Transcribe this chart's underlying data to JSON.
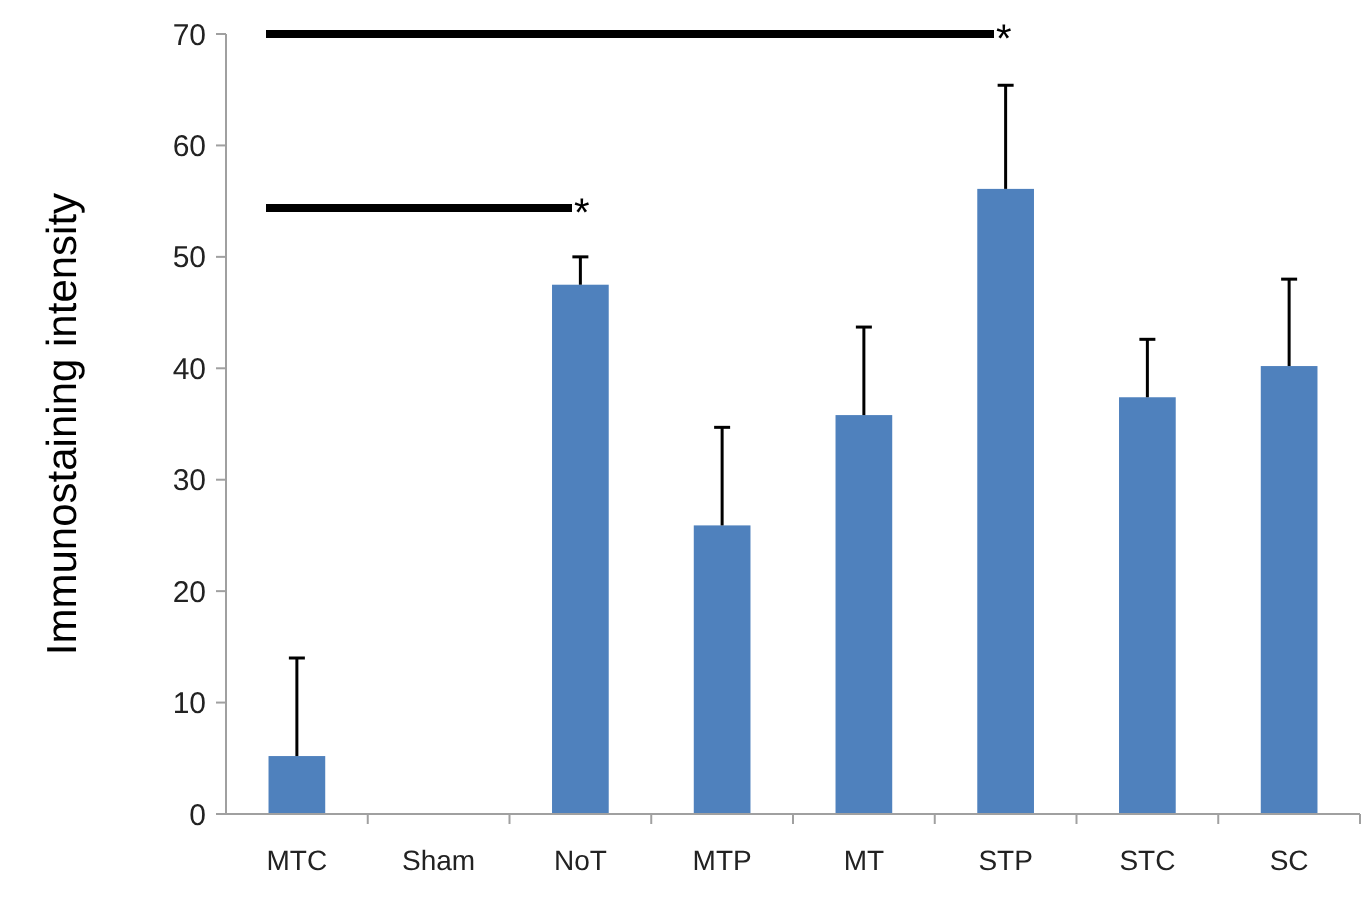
{
  "chart_data": {
    "type": "bar",
    "ylabel": "Immunostaining intensity",
    "categories": [
      "MTC",
      "Sham",
      "NoT",
      "MTP",
      "MT",
      "STP",
      "STC",
      "SC"
    ],
    "values": [
      5.2,
      null,
      47.5,
      25.9,
      35.8,
      56.1,
      37.4,
      40.2
    ],
    "errors": [
      8.8,
      null,
      2.5,
      8.8,
      7.9,
      9.3,
      5.2,
      7.8
    ],
    "color": "#4f81bd",
    "ylim": [
      0,
      70
    ],
    "yticks": [
      0,
      10,
      20,
      30,
      40,
      50,
      60,
      70
    ],
    "grid": false,
    "annotations": [
      "*",
      "*"
    ]
  }
}
